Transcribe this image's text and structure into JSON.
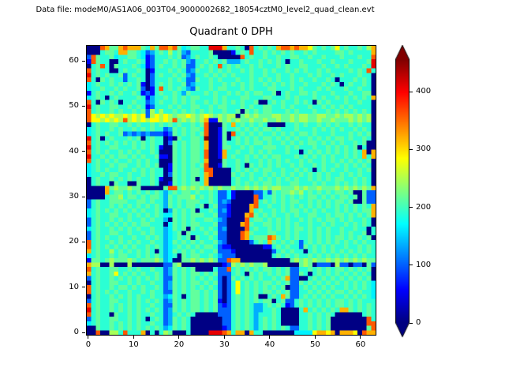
{
  "figure": {
    "data_file_label": "Data file: modeM0/AS1A06_003T04_9000002682_18054cztM0_level2_quad_clean.evt"
  },
  "chart_data": {
    "type": "heatmap",
    "title": "Quadrant 0 DPH",
    "xlabel": "",
    "ylabel": "",
    "grid_size": [
      64,
      64
    ],
    "x_ticks": [
      0,
      10,
      20,
      30,
      40,
      50,
      60
    ],
    "y_ticks": [
      0,
      10,
      20,
      30,
      40,
      50,
      60
    ],
    "colormap": "jet",
    "vmin": 0,
    "vmax": 456,
    "colorbar": {
      "ticks": [
        0,
        100,
        200,
        300,
        400
      ],
      "extend": "both",
      "position": "right"
    },
    "value_levels": {
      "0": 2,
      "1": 60,
      "2": 100,
      "3": 135,
      "4": 165,
      "5": 190,
      "6": 215,
      "7": 245,
      "8": 285,
      "9": 320,
      "a": 360,
      "b": 410,
      "c": 470
    },
    "orientation": "rows listed top to bottom: first row is y=63, last row is y=0; chars map to value_levels",
    "rows_top_to_bottom": [
      "000a9669a9996596aa9a6456655bbb955650a565659aa9a99865656856556579",
      "000566599665423565756325555600001565a556565656556565555665655559",
      "2a65564556654125556562356556500000a5655655655665565565556555655a",
      "1a6550056556512556565632556565633356556565650556555655655565556b",
      "056a5065556541256556562256565a565655656555656556655565565655565b",
      "a565500565565015556565236556565655656556565565656556565 5556565a",
      "b565655625655025655656325565656565556556556556555656556565556550",
      "a506565525565025556565226556565556556565656556565565565055565650",
      "4565565656561025656556235556556565656556565656556555656505655650",
      "4556556565562015a56565326556566555656555665556565556565556556550",
      "1565565655651215655653655565655656565665560565566565556555655660",
      "4565056555565135565656566555656555665556655565655565655656565659",
      "a506565055655235655656565565656565655600565655656506565556556550",
      "b565566556565125556565566556566555656556655656555655656565655550",
      "a565565655656275755656565656556556065656655565655565565656565650",
      "a878787787878278787677876787676770676766677667677667766767767670",
      "a8878787a7878788787a67676791176767667667667667677667667666767670",
      "0565566556565565656565565 6a0006595656565000055656556565655656550",
      "456556565565656552365656 65a0016556565656656555655565656565565650",
      "4565655623232322212656565 6a00160a5656565565656566565556555656560",
      "b560565556560565501065566 5c00160565656566565656556565656 65655650",
      "a565656565656565502656566590016556565665655656565665656565565600",
      "b565566555656565100656566590016655656556665565655565565656560500",
      "a5656556565655650006565665a0019556556565655565505656565656565909",
      "b5565656656565561106565665a0019565565656566555656565656556565959",
      "a565656556565655000656566590006556565565656565565655656565656560",
      "45655656655656560016565656a0016556506565656556565565655656565650",
      "456565565565656550165656 65aa000056565656655655656505656556556560",
      "45565665565565655026565 6659a000065656556565656565656565565656550",
      "0565565656565565100656560590000056556565656565655656565665565650",
      "0565506550065565001656566590000056565656656556655565655656565650",
      "0000967667660000 06aa67676767676676676767677666767667666767676769",
      "0000956656565656535656656556522410000225265667675656565665600622",
      "000056675665656653656667565652241000 0a255656565656656565 66560622",
      "2565566665566565536565666556523200000a5656565665565656 5665600622",
      "2565565656565656536565665605622100009a5565565656565656 5656565659",
      "4565656565656556503656560556523100009565565656656565655656565669",
      "456556655656565654465656665562210009a65656556565566556 5665656569",
      "25655656565565655306565655665320000a566565656556565656 6565655650",
      "256565656565665550465656655562 20009a655665656565565565 6556565650",
      "4565565656565565534656065656523 0000a56556565656656565655 6556550",
      "256556655655656553456065556562 2000a965556655656556565655 6565560",
      "2565655655655656534565606556522000a95666a965656556565656 65656560",
      "a565565656565565534656565655632000002565965656525656565656565655",
      "a565656565655656534565656566521100000001156565526565656556556565",
      "9565575656565650534656565655622210000000025656550565656565656565",
      "4565565665565656534506566556532220000000056565655656565656565655",
      "16656766676566676340066767676 22a99000000000006767676676767676766",
      "9770070007000000022670000000001276767667000000067602220722022062",
      "a5655665565655655236565 60000522a56565656656562255656565665656560",
      "9565568565656556523656566565622256506565656562265056565656565650",
      "2565565656565656522656565656520265656565565692200565656565656560",
      "0565566556565565523656566565620258565656656562265656565656565654",
      "a565565665656556523656565656520258565656565602256565656556565654",
      "a565656556556565522656566565620258565656656562255656565665656554",
      "0565565656565565534650566565620256565600565962256565656556565654",
      "2565566556565656523656566565610256565656605622565656565665656555",
      "a565565656565565522656566565621256565335656512565656565665656565",
      "b565565656565656523656566565622256565335565000059565656599656565",
      "a565506556565565523565650000022256565355565000055656565000000565",
      "2565566556565056523656500000002256565356565000055656560 0000000a5",
      "4565565656565565523656500000002256565356565000055656560 0000000aa",
      "0065565656565656534656500000001256565356565652255656560 00000006a",
      "00a00775a555905057600050000bbba9599095500000004444899890 99980a99"
    ]
  }
}
